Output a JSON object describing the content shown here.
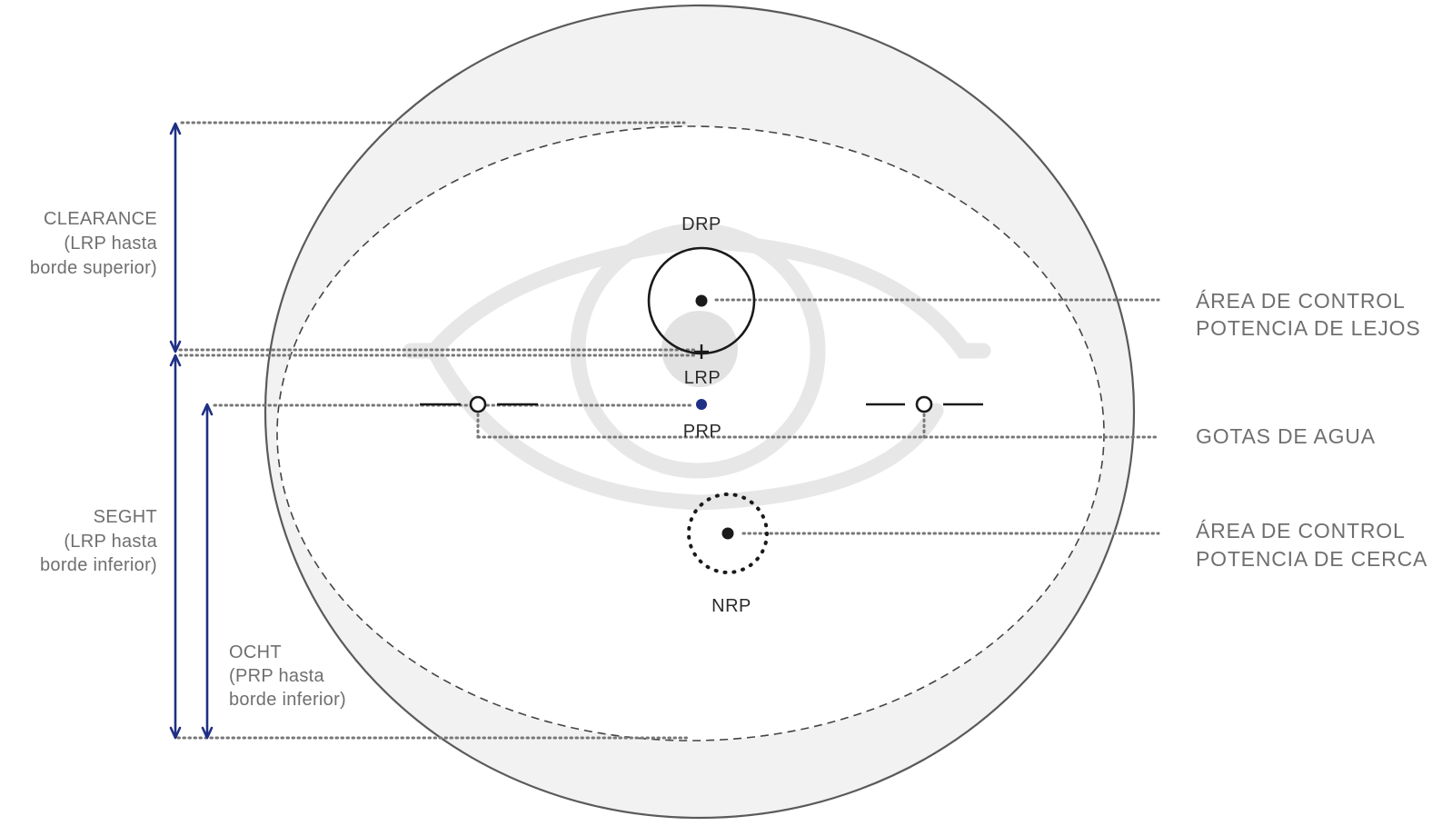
{
  "left_labels": {
    "clearance": [
      "CLEARANCE",
      "(LRP hasta",
      "borde superior)"
    ],
    "seght": [
      "SEGHT",
      "(LRP hasta",
      "borde inferior)"
    ],
    "ocht": [
      "OCHT",
      "(PRP hasta",
      "borde inferior)"
    ]
  },
  "point_labels": {
    "drp": "DRP",
    "lrp": "LRP",
    "prp": "PRP",
    "nrp": "NRP"
  },
  "right_labels": {
    "distance_area": [
      "ÁREA DE CONTROL",
      "POTENCIA DE LEJOS"
    ],
    "water_drops": [
      "GOTAS DE AGUA"
    ],
    "near_area": [
      "ÁREA DE CONTROL",
      "POTENCIA DE CERCA"
    ]
  },
  "icons": {
    "lens": "lens-outline",
    "eye": "eye-watermark",
    "lrp_marker": "cross-marker"
  },
  "colors": {
    "arrow": "#1f2f85",
    "prp_dot": "#1f2f85",
    "lens_fill": "#f2f2f3",
    "text": "#6f6f6f"
  }
}
